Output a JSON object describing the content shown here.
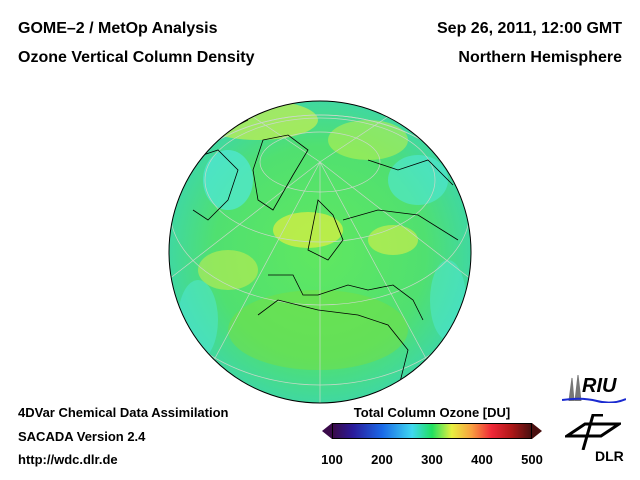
{
  "header": {
    "left_line1": "GOME–2 / MetOp Analysis",
    "left_line2": "Ozone Vertical Column Density",
    "right_line1": "Sep 26, 2011, 12:00 GMT",
    "right_line2": "Northern Hemisphere"
  },
  "footer": {
    "line1": "4DVar Chemical Data Assimilation",
    "line2": "SACADA Version 2.4",
    "line3": "http://wdc.dlr.de"
  },
  "colorbar": {
    "title": "Total Column Ozone [DU]",
    "ticks": [
      "100",
      "200",
      "300",
      "400",
      "500"
    ],
    "range": [
      100,
      500
    ]
  },
  "logos": {
    "riu": "RIU",
    "dlr": "DLR"
  },
  "map": {
    "projection": "orthographic",
    "hemisphere": "Northern Hemisphere",
    "dominant_color": "#40e060"
  }
}
